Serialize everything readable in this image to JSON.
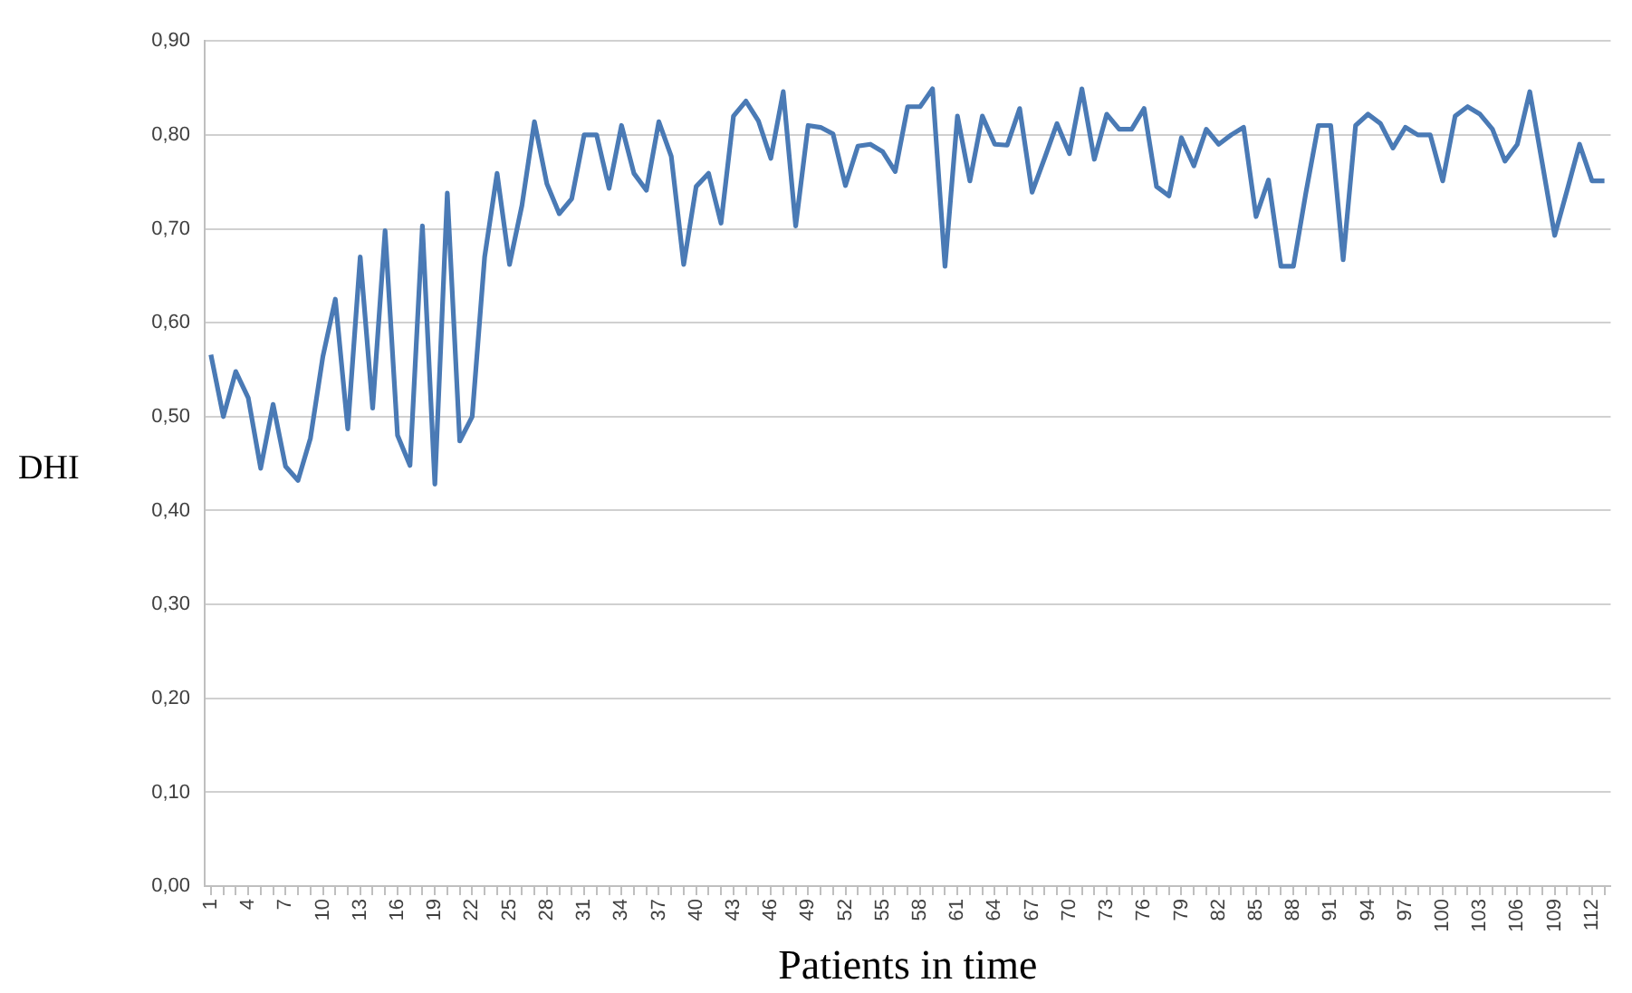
{
  "chart_data": {
    "type": "line",
    "xlabel": "Patients in time",
    "ylabel": "DHI",
    "categories": [
      "1",
      null,
      null,
      "4",
      null,
      null,
      "7",
      null,
      null,
      "10",
      null,
      null,
      "13",
      null,
      null,
      "16",
      null,
      null,
      "19",
      null,
      null,
      "22",
      null,
      null,
      "25",
      null,
      null,
      "28",
      null,
      null,
      "31",
      null,
      null,
      "34",
      null,
      null,
      "37",
      null,
      null,
      "40",
      null,
      null,
      "43",
      null,
      null,
      "46",
      null,
      null,
      "49",
      null,
      null,
      "52",
      null,
      null,
      "55",
      null,
      null,
      "58",
      null,
      null,
      "61",
      null,
      null,
      "64",
      null,
      null,
      "67",
      null,
      null,
      "70",
      null,
      null,
      "73",
      null,
      null,
      "76",
      null,
      null,
      "79",
      null,
      null,
      "82",
      null,
      null,
      "85",
      null,
      null,
      "88",
      null,
      null,
      "91",
      null,
      null,
      "94",
      null,
      null,
      "97",
      null,
      null,
      "100",
      null,
      null,
      "103",
      null,
      null,
      "106",
      null,
      null,
      "109",
      null,
      null,
      "112",
      null
    ],
    "series": [
      {
        "color": "#4a7ab5",
        "values": [
          0.566,
          0.5,
          0.548,
          0.52,
          0.445,
          0.513,
          0.447,
          0.432,
          0.477,
          0.564,
          0.625,
          0.487,
          0.67,
          0.509,
          0.698,
          0.48,
          0.448,
          0.703,
          0.428,
          0.738,
          0.474,
          0.5,
          0.67,
          0.759,
          0.662,
          0.725,
          0.814,
          0.748,
          0.716,
          0.732,
          0.8,
          0.8,
          0.743,
          0.81,
          0.759,
          0.741,
          0.814,
          0.777,
          0.662,
          0.745,
          0.759,
          0.706,
          0.82,
          0.836,
          0.815,
          0.775,
          0.846,
          0.703,
          0.81,
          0.808,
          0.801,
          0.746,
          0.788,
          0.79,
          0.782,
          0.761,
          0.83,
          0.83,
          0.849,
          0.66,
          0.82,
          0.751,
          0.82,
          0.79,
          0.789,
          0.828,
          0.739,
          0.775,
          0.812,
          0.78,
          0.849,
          0.774,
          0.822,
          0.806,
          0.806,
          0.828,
          0.745,
          0.735,
          0.797,
          0.767,
          0.806,
          0.79,
          0.8,
          0.808,
          0.713,
          0.752,
          0.66,
          0.66,
          0.738,
          0.81,
          0.81,
          0.667,
          0.81,
          0.822,
          0.812,
          0.786,
          0.808,
          0.8,
          0.8,
          0.751,
          0.82,
          0.83,
          0.822,
          0.806,
          0.772,
          0.79,
          0.846,
          0.77,
          0.693,
          0.741,
          0.79,
          0.751,
          0.751
        ]
      }
    ],
    "ylim": [
      0,
      0.9
    ],
    "yticks": [
      {
        "value": 0,
        "label": "0,00"
      },
      {
        "value": 0.1,
        "label": "0,10"
      },
      {
        "value": 0.2,
        "label": "0,20"
      },
      {
        "value": 0.3,
        "label": "0,30"
      },
      {
        "value": 0.4,
        "label": "0,40"
      },
      {
        "value": 0.5,
        "label": "0,50"
      },
      {
        "value": 0.6,
        "label": "0,60"
      },
      {
        "value": 0.7,
        "label": "0,70"
      },
      {
        "value": 0.8,
        "label": "0,80"
      },
      {
        "value": 0.9,
        "label": "0,90"
      }
    ],
    "grid": "y",
    "legend": false,
    "marker": "none",
    "line_style": "solid"
  }
}
